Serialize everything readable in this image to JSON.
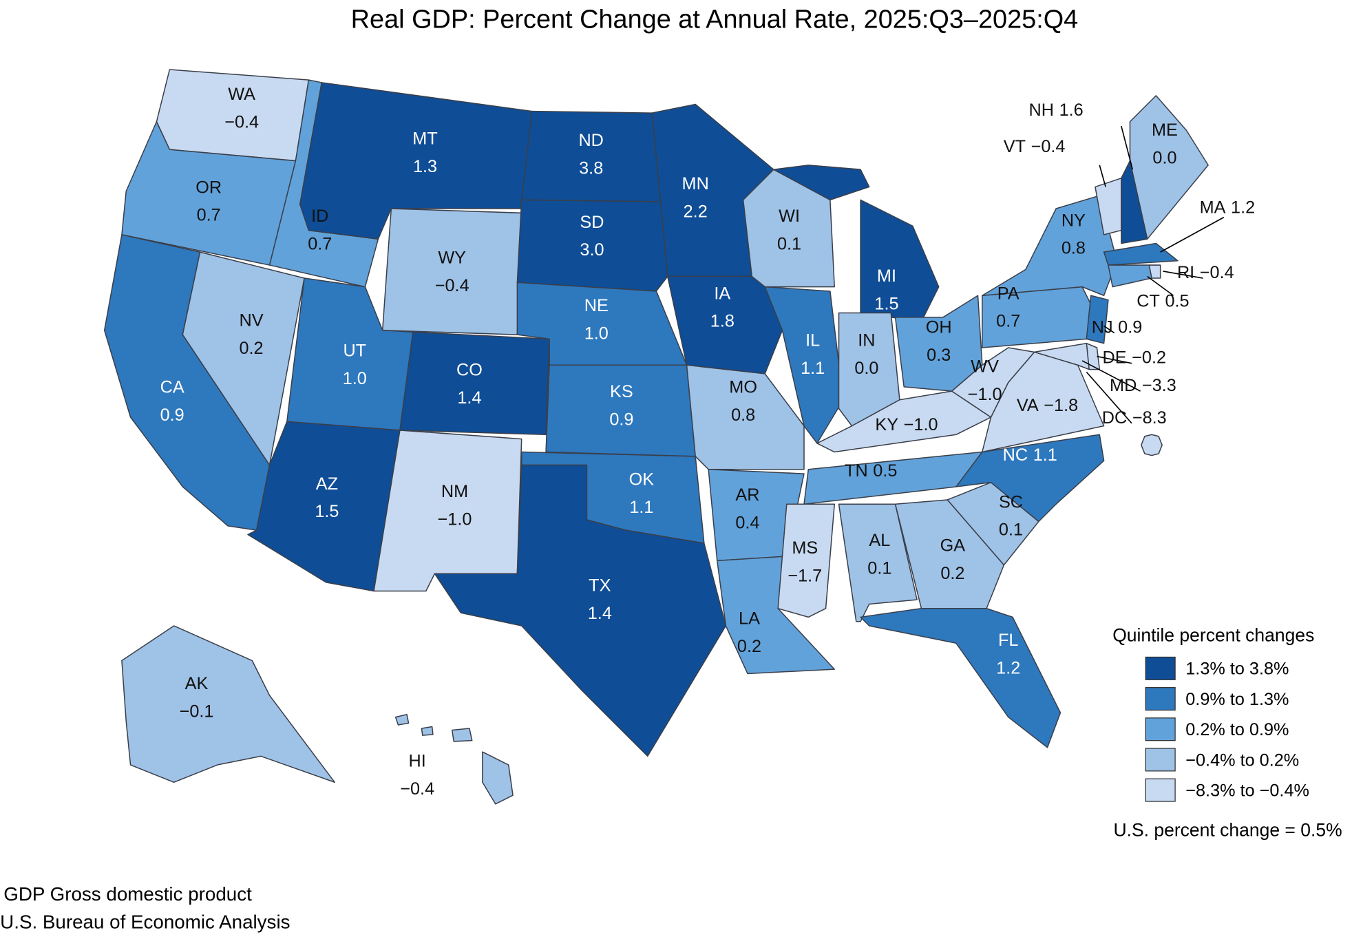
{
  "title": "Real GDP: Percent Change at Annual Rate, 2025:Q3–2025:Q4",
  "states": [
    {
      "name": "WA",
      "value": -0.4,
      "value_label": "−0.4",
      "color": "#c8daf1"
    },
    {
      "name": "OR",
      "value": 0.7,
      "value_label": "0.7",
      "color": "#62a2da"
    },
    {
      "name": "CA",
      "value": 0.9,
      "value_label": "0.9",
      "color": "#2e78be"
    },
    {
      "name": "NV",
      "value": 0.2,
      "value_label": "0.2",
      "color": "#9fc2e7"
    },
    {
      "name": "ID",
      "value": 0.7,
      "value_label": "0.7",
      "color": "#62a2da"
    },
    {
      "name": "MT",
      "value": 1.3,
      "value_label": "1.3",
      "color": "#0f4d96"
    },
    {
      "name": "WY",
      "value": -0.4,
      "value_label": "−0.4",
      "color": "#9fc2e7"
    },
    {
      "name": "UT",
      "value": 1.0,
      "value_label": "1.0",
      "color": "#2e78be"
    },
    {
      "name": "AZ",
      "value": 1.5,
      "value_label": "1.5",
      "color": "#0f4d96"
    },
    {
      "name": "CO",
      "value": 1.4,
      "value_label": "1.4",
      "color": "#0f4d96"
    },
    {
      "name": "NM",
      "value": -1.0,
      "value_label": "−1.0",
      "color": "#c8daf1"
    },
    {
      "name": "ND",
      "value": 3.8,
      "value_label": "3.8",
      "color": "#0f4d96"
    },
    {
      "name": "SD",
      "value": 3.0,
      "value_label": "3.0",
      "color": "#0f4d96"
    },
    {
      "name": "NE",
      "value": 1.0,
      "value_label": "1.0",
      "color": "#2e78be"
    },
    {
      "name": "KS",
      "value": 0.9,
      "value_label": "0.9",
      "color": "#2e78be"
    },
    {
      "name": "OK",
      "value": 1.1,
      "value_label": "1.1",
      "color": "#2e78be"
    },
    {
      "name": "TX",
      "value": 1.4,
      "value_label": "1.4",
      "color": "#0f4d96"
    },
    {
      "name": "MN",
      "value": 2.2,
      "value_label": "2.2",
      "color": "#0f4d96"
    },
    {
      "name": "IA",
      "value": 1.8,
      "value_label": "1.8",
      "color": "#0f4d96"
    },
    {
      "name": "MO",
      "value": 0.8,
      "value_label": "0.8",
      "color": "#9fc2e7"
    },
    {
      "name": "AR",
      "value": 0.4,
      "value_label": "0.4",
      "color": "#62a2da"
    },
    {
      "name": "LA",
      "value": 0.2,
      "value_label": "0.2",
      "color": "#62a2da"
    },
    {
      "name": "WI",
      "value": 0.1,
      "value_label": "0.1",
      "color": "#9fc2e7"
    },
    {
      "name": "IL",
      "value": 1.1,
      "value_label": "1.1",
      "color": "#2e78be"
    },
    {
      "name": "MI",
      "value": 1.5,
      "value_label": "1.5",
      "color": "#0f4d96"
    },
    {
      "name": "IN",
      "value": 0.0,
      "value_label": "0.0",
      "color": "#9fc2e7"
    },
    {
      "name": "OH",
      "value": 0.3,
      "value_label": "0.3",
      "color": "#62a2da"
    },
    {
      "name": "KY",
      "value": -1.0,
      "value_label": "−1.0",
      "color": "#c8daf1"
    },
    {
      "name": "TN",
      "value": 0.5,
      "value_label": "0.5",
      "color": "#62a2da"
    },
    {
      "name": "MS",
      "value": -1.7,
      "value_label": "−1.7",
      "color": "#c8daf1"
    },
    {
      "name": "AL",
      "value": 0.1,
      "value_label": "0.1",
      "color": "#9fc2e7"
    },
    {
      "name": "GA",
      "value": 0.2,
      "value_label": "0.2",
      "color": "#9fc2e7"
    },
    {
      "name": "FL",
      "value": 1.2,
      "value_label": "1.2",
      "color": "#2e78be"
    },
    {
      "name": "SC",
      "value": 0.1,
      "value_label": "0.1",
      "color": "#9fc2e7"
    },
    {
      "name": "NC",
      "value": 1.1,
      "value_label": "1.1",
      "color": "#2e78be"
    },
    {
      "name": "VA",
      "value": -1.8,
      "value_label": "−1.8",
      "color": "#c8daf1"
    },
    {
      "name": "WV",
      "value": -1.0,
      "value_label": "−1.0",
      "color": "#c8daf1"
    },
    {
      "name": "PA",
      "value": 0.7,
      "value_label": "0.7",
      "color": "#62a2da"
    },
    {
      "name": "NY",
      "value": 0.8,
      "value_label": "0.8",
      "color": "#62a2da"
    },
    {
      "name": "NJ",
      "value": 0.9,
      "value_label": "0.9",
      "color": "#2e78be"
    },
    {
      "name": "DE",
      "value": -0.2,
      "value_label": "−0.2",
      "color": "#c8daf1"
    },
    {
      "name": "MD",
      "value": -3.3,
      "value_label": "−3.3",
      "color": "#c8daf1"
    },
    {
      "name": "DC",
      "value": -8.3,
      "value_label": "−8.3",
      "color": "#c8daf1"
    },
    {
      "name": "VT",
      "value": -0.4,
      "value_label": "−0.4",
      "color": "#c8daf1"
    },
    {
      "name": "NH",
      "value": 1.6,
      "value_label": "1.6",
      "color": "#0f4d96"
    },
    {
      "name": "ME",
      "value": 0.0,
      "value_label": "0.0",
      "color": "#9fc2e7"
    },
    {
      "name": "MA",
      "value": 1.2,
      "value_label": "1.2",
      "color": "#2e78be"
    },
    {
      "name": "RI",
      "value": -0.4,
      "value_label": "−0.4",
      "color": "#c8daf1"
    },
    {
      "name": "CT",
      "value": 0.5,
      "value_label": "0.5",
      "color": "#62a2da"
    },
    {
      "name": "AK",
      "value": -0.1,
      "value_label": "−0.1",
      "color": "#9fc2e7"
    },
    {
      "name": "HI",
      "value": -0.4,
      "value_label": "−0.4",
      "color": "#9fc2e7"
    }
  ],
  "legend": {
    "title": "Quintile percent changes",
    "items": [
      {
        "label": "1.3% to 3.8%",
        "color": "#0f4d96"
      },
      {
        "label": "0.9% to 1.3%",
        "color": "#2e78be"
      },
      {
        "label": "0.2% to 0.9%",
        "color": "#62a2da"
      },
      {
        "label": "−0.4% to 0.2%",
        "color": "#9fc2e7"
      },
      {
        "label": "−8.3% to −0.4%",
        "color": "#c8daf1"
      }
    ],
    "note": "U.S. percent change = 0.5%"
  },
  "footnotes": [
    "GDP Gross domestic product",
    "U.S. Bureau of Economic Analysis"
  ]
}
